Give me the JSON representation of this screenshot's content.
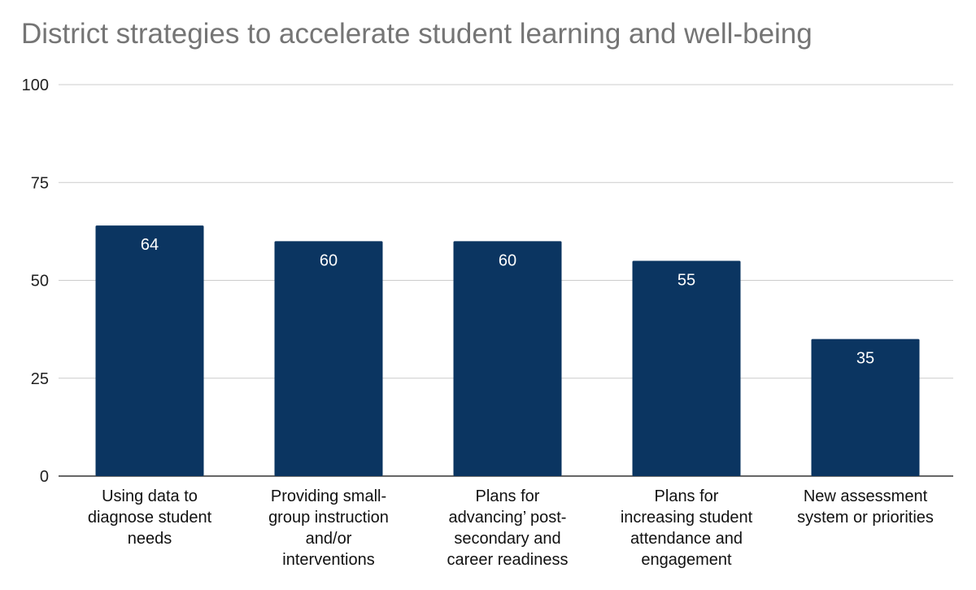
{
  "chart_data": {
    "type": "bar",
    "title": "District strategies to accelerate student learning and well-being",
    "xlabel": "",
    "ylabel": "",
    "ylim": [
      0,
      100
    ],
    "yticks": [
      0,
      25,
      50,
      75,
      100
    ],
    "grid": true,
    "legend": "none",
    "bar_color": "#0b3561",
    "categories": [
      [
        "Using data to",
        "diagnose student",
        "needs"
      ],
      [
        "Providing small-",
        "group instruction",
        "and/or",
        "interventions"
      ],
      [
        "Plans for",
        "advancing’ post-",
        "secondary and",
        "career readiness"
      ],
      [
        "Plans for",
        "increasing student",
        "attendance and",
        "engagement"
      ],
      [
        "New assessment",
        "system or priorities"
      ]
    ],
    "values": [
      64,
      60,
      60,
      55,
      35
    ]
  }
}
